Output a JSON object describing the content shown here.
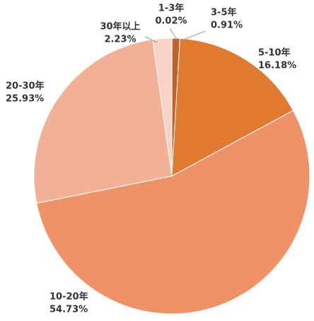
{
  "chart_data": {
    "type": "pie",
    "categories": [
      "1-3年",
      "3-5年",
      "5-10年",
      "10-20年",
      "20-30年",
      "30年以上"
    ],
    "values": [
      0.02,
      0.91,
      16.18,
      54.73,
      25.93,
      2.23
    ],
    "value_labels": [
      "0.02%",
      "0.91%",
      "16.18%",
      "54.73%",
      "25.93%",
      "2.23%"
    ],
    "colors": [
      "#8a3d15",
      "#c0622a",
      "#e07a30",
      "#ef9268",
      "#f2b196",
      "#f8d2c4"
    ]
  }
}
